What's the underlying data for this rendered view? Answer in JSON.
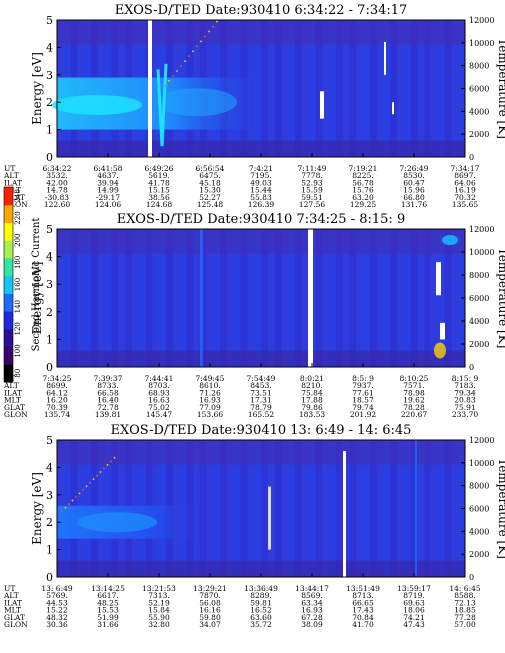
{
  "colorbar": {
    "label": "Second Harmonic Current",
    "ticks": [
      "80",
      "100",
      "120",
      "140",
      "160",
      "180",
      "200",
      "220",
      "240"
    ],
    "range": [
      80,
      240
    ],
    "colors": [
      "#000000",
      "#3a006e",
      "#2a0f9a",
      "#1d2be0",
      "#1e6cff",
      "#14c6ff",
      "#33e6a0",
      "#a8f04d",
      "#ffff00",
      "#ffa500",
      "#ff2000"
    ]
  },
  "chart_data": [
    {
      "type": "heatmap",
      "title": "EXOS-D/TED   Date:930410  6:34:22 - 7:34:17",
      "ylabel": "Energy [eV]",
      "y2label": "Temperature [K]",
      "ylim": [
        0,
        5
      ],
      "y2lim": [
        0,
        12000
      ],
      "yticks": [
        "0",
        "1",
        "2",
        "3",
        "4",
        "5"
      ],
      "y2ticks": [
        "0",
        "2000",
        "4000",
        "6000",
        "8000",
        "10000",
        "12000"
      ],
      "row_labels": [
        "UT",
        "ALT",
        "ILAT",
        "MLT",
        "GLAT",
        "GLON"
      ],
      "columns": [
        [
          "6:34:22",
          "3532.",
          "42.00",
          "14.78",
          "-30.83",
          "122.60"
        ],
        [
          "6:41:58",
          "4637.",
          "39.94",
          "14.99",
          "-29.17",
          "124.06"
        ],
        [
          "6:49:26",
          "5619.",
          "41.78",
          "15.15",
          "38.56",
          "124.68"
        ],
        [
          "6:56:54",
          "6475.",
          "45.18",
          "15.30",
          "52.27",
          "125.48"
        ],
        [
          "7:4:21",
          "7195.",
          "49.03",
          "15.44",
          "55.83",
          "126.39"
        ],
        [
          "7:11:49",
          "7778.",
          "52.93",
          "15.59",
          "59.51",
          "127.56"
        ],
        [
          "7:19:21",
          "8225.",
          "56.78",
          "15.76",
          "63.20",
          "129.25"
        ],
        [
          "7:26:49",
          "8530.",
          "60.47",
          "15.96",
          "66.80",
          "131.76"
        ],
        [
          "7:34:17",
          "8697.",
          "64.06",
          "16.19",
          "70.32",
          "135.65"
        ]
      ]
    },
    {
      "type": "heatmap",
      "title": "EXOS-D/TED   Date:930410  7:34:25 - 8:15: 9",
      "ylabel": "Energy [eV]",
      "y2label": "Temperature [K]",
      "ylim": [
        0,
        5
      ],
      "y2lim": [
        0,
        12000
      ],
      "yticks": [
        "0",
        "1",
        "2",
        "3",
        "4",
        "5"
      ],
      "y2ticks": [
        "0",
        "2000",
        "4000",
        "6000",
        "8000",
        "10000",
        "12000"
      ],
      "row_labels": [
        "UT",
        "ALT",
        "ILAT",
        "MLT",
        "GLAT",
        "GLON"
      ],
      "columns": [
        [
          "7:34:25",
          "8699.",
          "64.12",
          "16.20",
          "70.39",
          "135.74"
        ],
        [
          "7:39:37",
          "8733.",
          "66.58",
          "16.40",
          "72.78",
          "139.81"
        ],
        [
          "7:44:41",
          "8703.",
          "68.93",
          "16.63",
          "75.02",
          "145.47"
        ],
        [
          "7:49:45",
          "8610.",
          "71.26",
          "16.93",
          "77.09",
          "153.66"
        ],
        [
          "7:54:49",
          "8453.",
          "73.51",
          "17.31",
          "78.79",
          "165.52"
        ],
        [
          "8:0:21",
          "8210.",
          "75.84",
          "17.88",
          "79.86",
          "183.53"
        ],
        [
          "8:5: 9",
          "7937.",
          "77.61",
          "18.57",
          "79.74",
          "201.92"
        ],
        [
          "8:10:25",
          "7571.",
          "78.98",
          "19.62",
          "78.28",
          "220.67"
        ],
        [
          "8:15: 9",
          "7183.",
          "79.34",
          "20.83",
          "75.91",
          "233.70"
        ]
      ]
    },
    {
      "type": "heatmap",
      "title": "EXOS-D/TED   Date:930410  13: 6:49 - 14: 6:45",
      "ylabel": "Energy [eV]",
      "y2label": "Temperature [K]",
      "ylim": [
        0,
        5
      ],
      "y2lim": [
        0,
        12000
      ],
      "yticks": [
        "0",
        "1",
        "2",
        "3",
        "4",
        "5"
      ],
      "y2ticks": [
        "0",
        "2000",
        "4000",
        "6000",
        "8000",
        "10000",
        "12000"
      ],
      "row_labels": [
        "UT",
        "ALT",
        "ILAT",
        "MLT",
        "GLAT",
        "GLON"
      ],
      "columns": [
        [
          "13: 6:49",
          "5769.",
          "44.53",
          "15.22",
          "48.32",
          "30.36"
        ],
        [
          "13:14:25",
          "6617.",
          "48.25",
          "15.53",
          "51.99",
          "31.66"
        ],
        [
          "13:21:53",
          "7313.",
          "52.19",
          "15.84",
          "55.90",
          "32.80"
        ],
        [
          "13:29:21",
          "7870.",
          "56.08",
          "16.16",
          "59.80",
          "34.07"
        ],
        [
          "13:36:49",
          "8289.",
          "59.81",
          "16.52",
          "63.60",
          "35.72"
        ],
        [
          "13:44:17",
          "8569.",
          "63.34",
          "16.93",
          "67.28",
          "38.09"
        ],
        [
          "13:51:49",
          "8713.",
          "66.65",
          "17.43",
          "70.84",
          "41.70"
        ],
        [
          "13:59:17",
          "8719.",
          "69.63",
          "18.06",
          "74.21",
          "47.43"
        ],
        [
          "14: 6:45",
          "8588.",
          "72.13",
          "18.85",
          "77.28",
          "57.00"
        ]
      ]
    }
  ]
}
